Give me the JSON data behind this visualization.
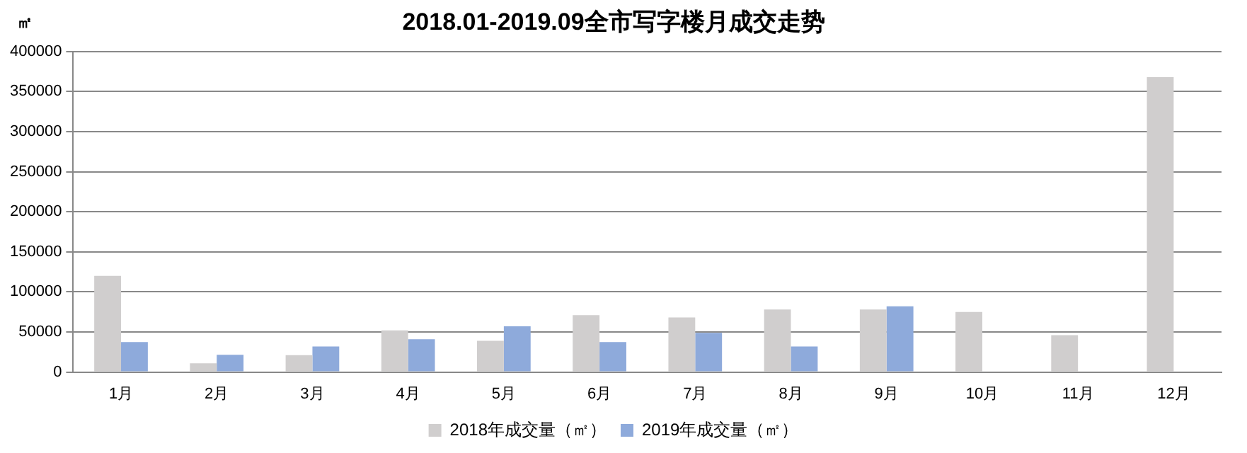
{
  "chart_data": {
    "type": "bar",
    "title": "2018.01-2019.09全市写字楼月成交走势",
    "ylabel": "㎡",
    "categories": [
      "1月",
      "2月",
      "3月",
      "4月",
      "5月",
      "6月",
      "7月",
      "8月",
      "9月",
      "10月",
      "11月",
      "12月"
    ],
    "series": [
      {
        "name": "2018年成交量（㎡）",
        "color": "#d0cece",
        "values": [
          120000,
          11000,
          21000,
          52000,
          39000,
          71000,
          68000,
          78000,
          78000,
          75000,
          46000,
          368000
        ]
      },
      {
        "name": "2019年成交量（㎡）",
        "color": "#8eaadb",
        "values": [
          37500,
          21500,
          32000,
          41000,
          57000,
          37500,
          49000,
          32000,
          82000,
          null,
          null,
          null
        ]
      }
    ],
    "ylim": [
      0,
      400000
    ],
    "yticks": [
      0,
      50000,
      100000,
      150000,
      200000,
      250000,
      300000,
      350000,
      400000
    ],
    "grid": "y",
    "legend": "bottom"
  }
}
